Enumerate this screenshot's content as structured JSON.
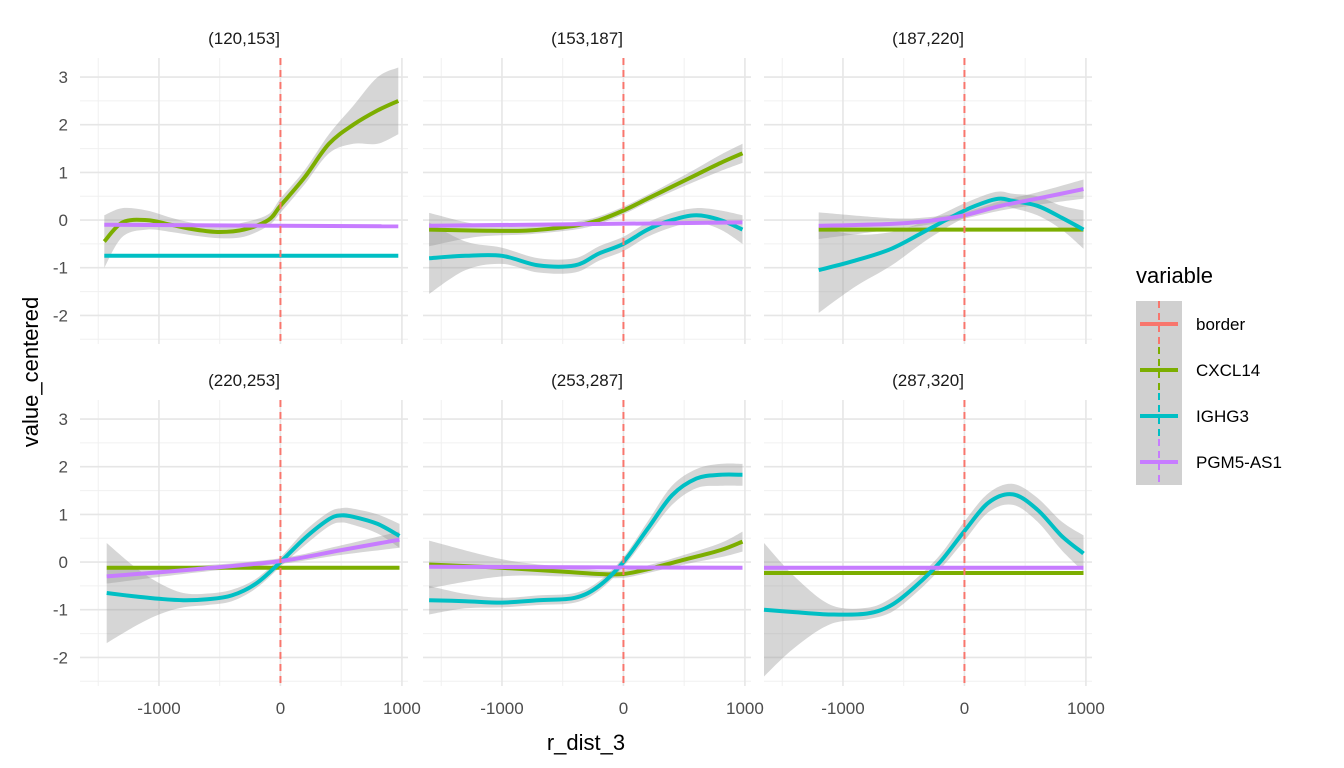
{
  "chart_data": {
    "type": "line",
    "xlabel": "r_dist_3",
    "ylabel": "value_centered",
    "xlim": [
      -1650,
      1050
    ],
    "ylim": [
      -2.6,
      3.4
    ],
    "x_ticks": [
      -1000,
      0,
      1000
    ],
    "x_tick_labels": [
      "-1000",
      "0",
      "1000"
    ],
    "y_ticks": [
      -2,
      -1,
      0,
      1,
      2,
      3
    ],
    "y_tick_labels": [
      "-2",
      "-1",
      "0",
      "1",
      "2",
      "3"
    ],
    "grid": true,
    "border_x": 0,
    "legend": {
      "title": "variable",
      "position": "right",
      "entries": [
        {
          "name": "border",
          "color": "#F8766D",
          "dashed": true
        },
        {
          "name": "CXCL14",
          "color": "#7CAE00"
        },
        {
          "name": "IGHG3",
          "color": "#00BFC4"
        },
        {
          "name": "PGM5-AS1",
          "color": "#C77CFF"
        }
      ]
    },
    "panels": [
      {
        "title": "(120,153]",
        "series": [
          {
            "name": "CXCL14",
            "x": [
              -1450,
              -1300,
              -1100,
              -900,
              -700,
              -500,
              -300,
              -100,
              0,
              200,
              400,
              600,
              800,
              970
            ],
            "y": [
              -0.45,
              -0.05,
              0.0,
              -0.1,
              -0.2,
              -0.25,
              -0.2,
              0.0,
              0.3,
              0.9,
              1.6,
              2.0,
              2.3,
              2.5
            ],
            "lower": [
              -1.0,
              -0.35,
              -0.2,
              -0.25,
              -0.33,
              -0.38,
              -0.35,
              -0.12,
              0.15,
              0.75,
              1.4,
              1.6,
              1.6,
              1.8
            ],
            "upper": [
              0.1,
              0.25,
              0.2,
              0.05,
              -0.07,
              -0.12,
              -0.05,
              0.12,
              0.45,
              1.05,
              1.8,
              2.4,
              3.0,
              3.2
            ]
          },
          {
            "name": "IGHG3",
            "x": [
              -1450,
              970
            ],
            "y": [
              -0.75,
              -0.75
            ]
          },
          {
            "name": "PGM5-AS1",
            "x": [
              -1450,
              970
            ],
            "y": [
              -0.1,
              -0.13
            ]
          }
        ]
      },
      {
        "title": "(153,187]",
        "series": [
          {
            "name": "CXCL14",
            "x": [
              -1600,
              -1200,
              -800,
              -400,
              -200,
              0,
              200,
              400,
              600,
              800,
              980
            ],
            "y": [
              -0.2,
              -0.22,
              -0.22,
              -0.12,
              0.0,
              0.2,
              0.45,
              0.7,
              0.95,
              1.2,
              1.4
            ],
            "lower": [
              -0.55,
              -0.35,
              -0.3,
              -0.2,
              -0.08,
              0.12,
              0.37,
              0.6,
              0.82,
              1.03,
              1.2
            ],
            "upper": [
              0.15,
              -0.09,
              -0.14,
              -0.04,
              0.08,
              0.28,
              0.53,
              0.8,
              1.08,
              1.37,
              1.6
            ]
          },
          {
            "name": "IGHG3",
            "x": [
              -1600,
              -1300,
              -1000,
              -700,
              -400,
              -200,
              0,
              200,
              400,
              600,
              800,
              980
            ],
            "y": [
              -0.8,
              -0.75,
              -0.75,
              -0.95,
              -0.95,
              -0.7,
              -0.5,
              -0.2,
              0.0,
              0.1,
              0.0,
              -0.2
            ],
            "lower": [
              -1.55,
              -1.05,
              -0.92,
              -1.1,
              -1.1,
              -0.85,
              -0.65,
              -0.35,
              -0.15,
              -0.05,
              -0.2,
              -0.5
            ],
            "upper": [
              -0.05,
              -0.45,
              -0.58,
              -0.8,
              -0.8,
              -0.55,
              -0.35,
              -0.05,
              0.15,
              0.25,
              0.2,
              0.1
            ]
          },
          {
            "name": "PGM5-AS1",
            "x": [
              -1600,
              980
            ],
            "y": [
              -0.12,
              -0.05
            ]
          }
        ]
      },
      {
        "title": "(187,220]",
        "series": [
          {
            "name": "CXCL14",
            "x": [
              -1200,
              980
            ],
            "y": [
              -0.2,
              -0.2
            ]
          },
          {
            "name": "IGHG3",
            "x": [
              -1200,
              -900,
              -600,
              -300,
              0,
              200,
              300,
              400,
              600,
              800,
              980
            ],
            "y": [
              -1.05,
              -0.85,
              -0.6,
              -0.2,
              0.2,
              0.4,
              0.45,
              0.4,
              0.3,
              0.05,
              -0.2
            ],
            "lower": [
              -1.95,
              -1.4,
              -0.95,
              -0.4,
              0.05,
              0.25,
              0.3,
              0.25,
              0.1,
              -0.2,
              -0.6
            ],
            "upper": [
              -0.15,
              -0.3,
              -0.25,
              0.0,
              0.35,
              0.55,
              0.6,
              0.55,
              0.5,
              0.3,
              0.2
            ]
          },
          {
            "name": "PGM5-AS1",
            "x": [
              -1200,
              -600,
              -300,
              0,
              300,
              600,
              980
            ],
            "y": [
              -0.12,
              -0.08,
              -0.02,
              0.1,
              0.3,
              0.45,
              0.65
            ],
            "lower": [
              -0.4,
              -0.2,
              -0.1,
              0.03,
              0.2,
              0.32,
              0.45
            ],
            "upper": [
              0.16,
              0.04,
              0.06,
              0.17,
              0.4,
              0.58,
              0.85
            ]
          }
        ]
      },
      {
        "title": "(220,253]",
        "series": [
          {
            "name": "CXCL14",
            "x": [
              -1430,
              980
            ],
            "y": [
              -0.12,
              -0.12
            ]
          },
          {
            "name": "IGHG3",
            "x": [
              -1430,
              -1200,
              -1000,
              -800,
              -600,
              -400,
              -200,
              0,
              200,
              400,
              500,
              600,
              800,
              980
            ],
            "y": [
              -0.65,
              -0.72,
              -0.77,
              -0.8,
              -0.78,
              -0.7,
              -0.45,
              0.0,
              0.5,
              0.9,
              0.98,
              0.95,
              0.8,
              0.55
            ],
            "lower": [
              -1.7,
              -1.35,
              -1.1,
              -0.95,
              -0.9,
              -0.82,
              -0.55,
              -0.1,
              0.35,
              0.75,
              0.83,
              0.78,
              0.6,
              0.3
            ],
            "upper": [
              0.4,
              -0.1,
              -0.44,
              -0.65,
              -0.66,
              -0.58,
              -0.35,
              0.1,
              0.65,
              1.05,
              1.13,
              1.12,
              1.0,
              0.8
            ]
          },
          {
            "name": "PGM5-AS1",
            "x": [
              -1430,
              -700,
              0,
              500,
              980
            ],
            "y": [
              -0.3,
              -0.15,
              0.02,
              0.25,
              0.47
            ],
            "lower": [
              -0.45,
              -0.22,
              -0.04,
              0.15,
              0.3
            ],
            "upper": [
              -0.15,
              -0.08,
              0.08,
              0.35,
              0.64
            ]
          }
        ]
      },
      {
        "title": "(253,287]",
        "series": [
          {
            "name": "CXCL14",
            "x": [
              -1600,
              -1000,
              -500,
              -200,
              0,
              200,
              500,
              800,
              980
            ],
            "y": [
              -0.05,
              -0.12,
              -0.2,
              -0.25,
              -0.25,
              -0.15,
              0.05,
              0.25,
              0.43
            ],
            "lower": [
              -0.55,
              -0.3,
              -0.3,
              -0.33,
              -0.33,
              -0.23,
              -0.05,
              0.1,
              0.22
            ],
            "upper": [
              0.45,
              0.06,
              -0.1,
              -0.17,
              -0.17,
              -0.07,
              0.15,
              0.4,
              0.64
            ]
          },
          {
            "name": "IGHG3",
            "x": [
              -1600,
              -1300,
              -1000,
              -700,
              -400,
              -200,
              0,
              200,
              400,
              600,
              800,
              980
            ],
            "y": [
              -0.8,
              -0.82,
              -0.85,
              -0.8,
              -0.75,
              -0.5,
              0.0,
              0.7,
              1.4,
              1.75,
              1.83,
              1.83
            ],
            "lower": [
              -1.1,
              -0.97,
              -0.95,
              -0.9,
              -0.85,
              -0.6,
              -0.1,
              0.55,
              1.2,
              1.55,
              1.6,
              1.6
            ],
            "upper": [
              -0.5,
              -0.67,
              -0.75,
              -0.7,
              -0.65,
              -0.4,
              0.1,
              0.85,
              1.6,
              1.95,
              2.06,
              2.06
            ]
          },
          {
            "name": "PGM5-AS1",
            "x": [
              -1600,
              980
            ],
            "y": [
              -0.1,
              -0.12
            ]
          }
        ]
      },
      {
        "title": "(287,320]",
        "series": [
          {
            "name": "CXCL14",
            "x": [
              -1650,
              980
            ],
            "y": [
              -0.23,
              -0.23
            ]
          },
          {
            "name": "IGHG3",
            "x": [
              -1650,
              -1400,
              -1100,
              -800,
              -600,
              -400,
              -200,
              0,
              200,
              400,
              600,
              800,
              980
            ],
            "y": [
              -1.0,
              -1.05,
              -1.1,
              -1.08,
              -0.9,
              -0.5,
              0.0,
              0.65,
              1.25,
              1.42,
              1.1,
              0.55,
              0.18
            ],
            "lower": [
              -2.4,
              -1.8,
              -1.3,
              -1.2,
              -1.05,
              -0.65,
              -0.15,
              0.45,
              1.05,
              1.2,
              0.85,
              0.25,
              -0.2
            ],
            "upper": [
              0.4,
              -0.3,
              -0.9,
              -0.96,
              -0.75,
              -0.35,
              0.15,
              0.85,
              1.45,
              1.64,
              1.35,
              0.85,
              0.56
            ]
          },
          {
            "name": "PGM5-AS1",
            "x": [
              -1650,
              980
            ],
            "y": [
              -0.12,
              -0.12
            ]
          }
        ]
      }
    ]
  }
}
